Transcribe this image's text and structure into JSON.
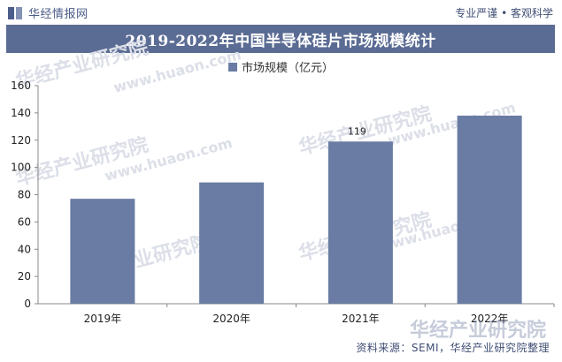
{
  "header": {
    "brand": "华经情报网",
    "motto": "专业严谨 • 客观科学"
  },
  "chart_data": {
    "type": "bar",
    "title": "2019-2022年中国半导体硅片市场规模统计",
    "categories": [
      "2019年",
      "2020年",
      "2021年",
      "2022年"
    ],
    "series": [
      {
        "name": "市场规模（亿元）",
        "values": [
          77,
          89,
          119,
          138
        ],
        "color": "#6a7ca3"
      }
    ],
    "data_labels": [
      null,
      null,
      "119",
      null
    ],
    "ylim": [
      0,
      160
    ],
    "yticks": [
      0,
      20,
      40,
      60,
      80,
      100,
      120,
      140,
      160
    ],
    "grid": false,
    "legend_position": "top"
  },
  "watermarks": {
    "text_cn": "华经产业研究院",
    "text_url": "www.huaon.com"
  },
  "footer": {
    "source": "资料来源：SEMI，华经产业研究院整理",
    "watermark": "华经产业研究院"
  }
}
